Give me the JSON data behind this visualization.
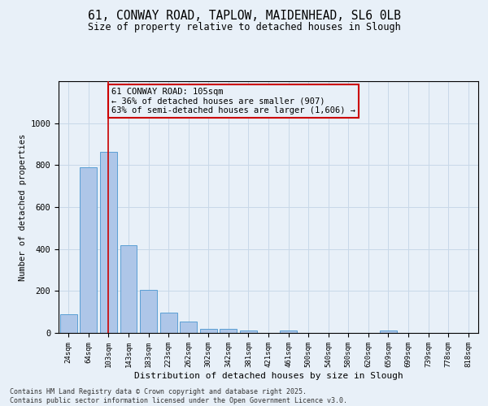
{
  "title_line1": "61, CONWAY ROAD, TAPLOW, MAIDENHEAD, SL6 0LB",
  "title_line2": "Size of property relative to detached houses in Slough",
  "xlabel": "Distribution of detached houses by size in Slough",
  "ylabel": "Number of detached properties",
  "categories": [
    "24sqm",
    "64sqm",
    "103sqm",
    "143sqm",
    "183sqm",
    "223sqm",
    "262sqm",
    "302sqm",
    "342sqm",
    "381sqm",
    "421sqm",
    "461sqm",
    "500sqm",
    "540sqm",
    "580sqm",
    "620sqm",
    "659sqm",
    "699sqm",
    "739sqm",
    "778sqm",
    "818sqm"
  ],
  "values": [
    90,
    790,
    865,
    420,
    205,
    95,
    55,
    20,
    18,
    10,
    0,
    10,
    0,
    0,
    0,
    0,
    10,
    0,
    0,
    0,
    0
  ],
  "bar_color": "#aec6e8",
  "bar_edge_color": "#5a9fd4",
  "grid_color": "#c8d8e8",
  "background_color": "#e8f0f8",
  "annotation_box_line1": "61 CONWAY ROAD: 105sqm",
  "annotation_box_line2": "← 36% of detached houses are smaller (907)",
  "annotation_box_line3": "63% of semi-detached houses are larger (1,606) →",
  "annotation_box_color": "#cc0000",
  "vline_color": "#cc0000",
  "vline_x_index": 2,
  "ylim": [
    0,
    1200
  ],
  "yticks": [
    0,
    200,
    400,
    600,
    800,
    1000
  ],
  "footer_line1": "Contains HM Land Registry data © Crown copyright and database right 2025.",
  "footer_line2": "Contains public sector information licensed under the Open Government Licence v3.0.",
  "figsize": [
    6.0,
    5.0
  ],
  "dpi": 100
}
